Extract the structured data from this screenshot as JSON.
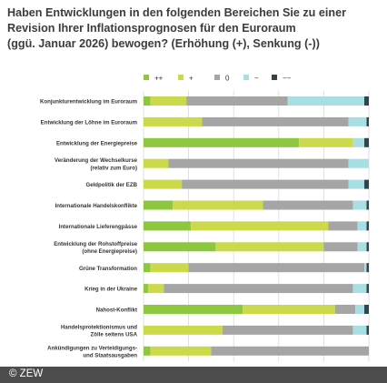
{
  "title_lines": [
    "Haben Entwicklungen in den folgenden Bereichen Sie zu einer",
    "Revision Ihrer Inflationsprognosen für den Euroraum",
    "(ggü. Januar 2026) bewogen? (Erhöhung (+), Senkung (-))"
  ],
  "footer": "© ZEW",
  "chart_data": {
    "type": "bar",
    "orientation": "horizontal",
    "stacked": true,
    "categories": [
      [
        "Konjunkturentwicklung im Euroraum"
      ],
      [
        "Entwicklung der Löhne im Euroraum"
      ],
      [
        "Entwicklung der Energiepreise"
      ],
      [
        "Veränderung der Wechselkurse",
        "(relativ zum Euro)"
      ],
      [
        "Geldpolitik der EZB"
      ],
      [
        "Internationale Handelskonflikte"
      ],
      [
        "Internationale Lieferengpässe"
      ],
      [
        "Entwicklung der Rohstoffpreise",
        "(ohne Energiepreise)"
      ],
      [
        "Grüne Transformation"
      ],
      [
        "Krieg in der Ukraine"
      ],
      [
        "Nahost-Konflikt"
      ],
      [
        "Handelsprotektionismus und",
        "Zölle seitens USA"
      ],
      [
        "Ankündigungen zu Verteidigungs-",
        "und Staatsausgaben"
      ]
    ],
    "series": [
      {
        "name": "++",
        "color": "#8dc63f",
        "values": [
          3,
          0,
          69,
          0,
          0,
          13,
          21,
          32,
          3,
          2,
          44,
          0,
          3
        ]
      },
      {
        "name": "+",
        "color": "#cbd94a",
        "values": [
          16,
          26,
          24,
          11,
          17,
          40,
          61,
          48,
          17,
          7,
          41,
          35,
          27
        ]
      },
      {
        "name": "0",
        "color": "#a5a5a5",
        "values": [
          45,
          65,
          0,
          80,
          74,
          40,
          13,
          15,
          78,
          84,
          9,
          58,
          70
        ]
      },
      {
        "name": "−",
        "color": "#a8dfe4",
        "values": [
          34,
          8,
          5,
          9,
          7,
          6,
          4,
          4,
          1,
          6,
          4,
          6,
          0
        ]
      },
      {
        "name": "−−",
        "color": "#35424c",
        "values": [
          2,
          1,
          2,
          0,
          2,
          1,
          1,
          1,
          1,
          1,
          2,
          1,
          0
        ]
      }
    ],
    "xticks": [
      "0%",
      "20%",
      "40%",
      "60%",
      "80%",
      "100%"
    ],
    "xlim": [
      0,
      100
    ],
    "grid": true,
    "legend_position": "top"
  }
}
